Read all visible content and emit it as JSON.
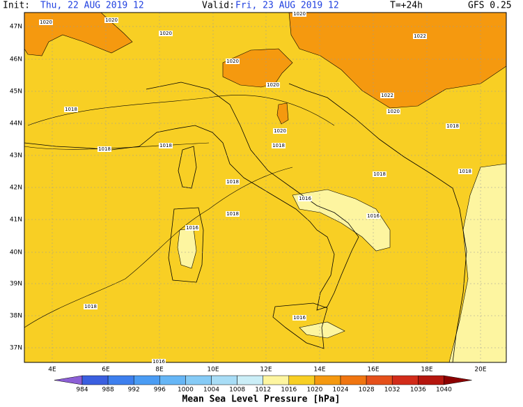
{
  "header": {
    "init_label": "Init:",
    "init_value": "Thu, 22 AUG 2019  12",
    "valid_label": "Valid:",
    "valid_value": "Fri, 23 AUG 2019  12",
    "lead": "T=+24h",
    "model": "GFS 0.25"
  },
  "map": {
    "lat_labels": [
      "47N",
      "46N",
      "45N",
      "44N",
      "43N",
      "42N",
      "41N",
      "40N",
      "39N",
      "38N",
      "37N"
    ],
    "lon_labels": [
      "4E",
      "6E",
      "8E",
      "10E",
      "12E",
      "14E",
      "16E",
      "18E",
      "20E"
    ],
    "isobar_labels": [
      "1020",
      "1020",
      "1020",
      "1020",
      "1022",
      "1020",
      "1020",
      "1022",
      "1020",
      "1018",
      "1020",
      "1018",
      "1018",
      "1018",
      "1018",
      "1018",
      "1018",
      "1018",
      "1016",
      "1018",
      "1016",
      "1016",
      "1018",
      "1016",
      "1016"
    ]
  },
  "colorbar": {
    "ticks": [
      984,
      988,
      992,
      996,
      1000,
      1004,
      1008,
      1012,
      1016,
      1020,
      1024,
      1028,
      1032,
      1036,
      1040
    ],
    "colors": [
      "#8c5fd6",
      "#3a5fe0",
      "#3d7fee",
      "#4a9cf4",
      "#66b6f6",
      "#86cbf6",
      "#a8ddf6",
      "#cbeef7",
      "#fdf5a0",
      "#f8cf24",
      "#f5990f",
      "#f07510",
      "#e5501a",
      "#d22c1a",
      "#b5160e",
      "#8c0000"
    ],
    "title": "Mean Sea Level Pressure [hPa]"
  }
}
